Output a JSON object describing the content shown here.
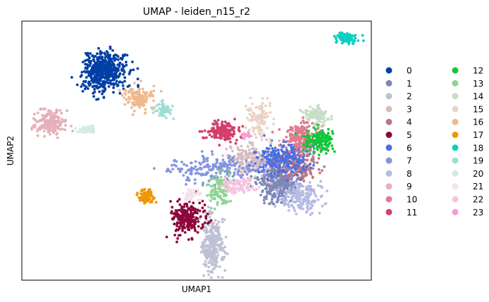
{
  "chart_data": {
    "type": "scatter",
    "title": "UMAP - leiden_n15_r2",
    "xlabel": "UMAP1",
    "ylabel": "UMAP2",
    "xlim": [
      0,
      100
    ],
    "ylim": [
      0,
      100
    ],
    "grid": false,
    "ticks": "none",
    "legend_position": "right, outside plot, two columns",
    "legend_marker": "filled circle",
    "series": [
      {
        "name": "0",
        "color": "#023fa5",
        "cx": 23.6,
        "cy": 80.5,
        "sx": 3.1,
        "sy": 3.8,
        "n": 480
      },
      {
        "name": "1",
        "color": "#7d87b9",
        "cx": 73.3,
        "cy": 38.0,
        "sx": 2.7,
        "sy": 4.0,
        "n": 420
      },
      {
        "name": "2",
        "color": "#bec1d4",
        "cx": 54.5,
        "cy": 13.5,
        "sx": 1.6,
        "sy": 6.0,
        "n": 300
      },
      {
        "name": "3",
        "color": "#d6bcc0",
        "cx": 65.5,
        "cy": 46.0,
        "sx": 4.0,
        "sy": 3.2,
        "n": 230
      },
      {
        "name": "4",
        "color": "#bb7784",
        "cx": 79.0,
        "cy": 44.5,
        "sx": 3.0,
        "sy": 3.0,
        "n": 210
      },
      {
        "name": "5",
        "color": "#8e063b",
        "cx": 47.3,
        "cy": 24.5,
        "sx": 2.5,
        "sy": 3.2,
        "n": 220
      },
      {
        "name": "6",
        "color": "#4a6fe3",
        "cx": 75.0,
        "cy": 47.0,
        "sx": 3.6,
        "sy": 3.2,
        "n": 230
      },
      {
        "name": "7",
        "color": "#8595e1",
        "cx": 55.5,
        "cy": 43.0,
        "sx": 7.0,
        "sy": 2.5,
        "n": 220
      },
      {
        "name": "8",
        "color": "#b5bbe3",
        "cx": 80.0,
        "cy": 32.0,
        "sx": 3.0,
        "sy": 3.0,
        "n": 170
      },
      {
        "name": "9",
        "color": "#e6afb9",
        "cx": 8.0,
        "cy": 60.5,
        "sx": 2.3,
        "sy": 2.3,
        "n": 190
      },
      {
        "name": "10",
        "color": "#e07b91",
        "cx": 80.0,
        "cy": 55.5,
        "sx": 2.4,
        "sy": 3.0,
        "n": 200
      },
      {
        "name": "11",
        "color": "#d33f6a",
        "cx": 57.5,
        "cy": 57.5,
        "sx": 2.2,
        "sy": 1.8,
        "n": 160
      },
      {
        "name": "12",
        "color": "#11c638",
        "cx": 85.0,
        "cy": 53.5,
        "sx": 2.0,
        "sy": 2.4,
        "n": 150
      },
      {
        "name": "13",
        "color": "#8dd593",
        "cx": 56.5,
        "cy": 35.0,
        "sx": 1.6,
        "sy": 3.2,
        "n": 110
      },
      {
        "name": "14",
        "color": "#c6dec7",
        "cx": 84.5,
        "cy": 63.5,
        "sx": 1.8,
        "sy": 1.6,
        "n": 110
      },
      {
        "name": "15",
        "color": "#ead3c6",
        "cx": 68.0,
        "cy": 62.5,
        "sx": 1.8,
        "sy": 3.6,
        "n": 120
      },
      {
        "name": "16",
        "color": "#f0b98d",
        "cx": 33.5,
        "cy": 70.5,
        "sx": 2.1,
        "sy": 2.0,
        "n": 140
      },
      {
        "name": "17",
        "color": "#ef9708",
        "cx": 35.5,
        "cy": 32.5,
        "sx": 1.2,
        "sy": 1.4,
        "n": 100
      },
      {
        "name": "18",
        "color": "#0fcfc0",
        "cx": 92.5,
        "cy": 93.5,
        "sx": 1.7,
        "sy": 1.1,
        "n": 100
      },
      {
        "name": "19",
        "color": "#9cded6",
        "cx": 40.5,
        "cy": 66.0,
        "sx": 1.1,
        "sy": 1.6,
        "n": 60
      },
      {
        "name": "20",
        "color": "#d5eae7",
        "cx": 19.0,
        "cy": 58.0,
        "sx": 1.3,
        "sy": 0.6,
        "n": 50
      },
      {
        "name": "21",
        "color": "#f3e1eb",
        "cx": 48.5,
        "cy": 33.0,
        "sx": 1.2,
        "sy": 1.2,
        "n": 40
      },
      {
        "name": "22",
        "color": "#f6c4e1",
        "cx": 62.0,
        "cy": 36.0,
        "sx": 3.0,
        "sy": 1.5,
        "n": 90
      },
      {
        "name": "23",
        "color": "#f79cd4",
        "cx": 64.5,
        "cy": 56.0,
        "sx": 0.6,
        "sy": 0.6,
        "n": 20
      }
    ]
  }
}
